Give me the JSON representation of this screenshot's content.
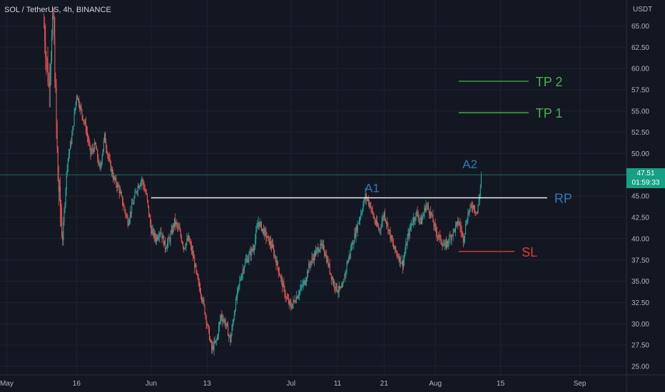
{
  "header": {
    "title": "SOL / TetherUS, 4h, BINANCE",
    "unit": "USDT"
  },
  "last_price": {
    "value": "47.51",
    "countdown": "01:59:33"
  },
  "colors": {
    "background": "#131722",
    "grid": "#1e2230",
    "text": "#b2b5be",
    "up": "#26a69a",
    "down": "#ef5350",
    "price_line": "#1e6b5e",
    "tp": "#4caf50",
    "rp_label": "#2f7bb8",
    "sl": "#e53935",
    "rp_line": "#ffffff"
  },
  "chart_data": {
    "type": "candlestick",
    "y_axis": {
      "min": 25,
      "max": 67.5,
      "ticks": [
        "25.00",
        "27.50",
        "30.00",
        "32.50",
        "35.00",
        "37.50",
        "40.00",
        "42.50",
        "45.00",
        "47.50",
        "50.00",
        "52.50",
        "55.00",
        "57.50",
        "60.00",
        "62.50",
        "65.00"
      ]
    },
    "x_ticks": [
      {
        "label": "May",
        "day": 0
      },
      {
        "label": "16",
        "day": 15
      },
      {
        "label": "Jun",
        "day": 31
      },
      {
        "label": "13",
        "day": 43
      },
      {
        "label": "Jul",
        "day": 61
      },
      {
        "label": "11",
        "day": 71
      },
      {
        "label": "21",
        "day": 81
      },
      {
        "label": "Aug",
        "day": 92
      },
      {
        "label": "15",
        "day": 106
      },
      {
        "label": "Sep",
        "day": 123
      }
    ],
    "close_path": [
      [
        8,
        65
      ],
      [
        9,
        58
      ],
      [
        10,
        66
      ],
      [
        11,
        47
      ],
      [
        12,
        40
      ],
      [
        13,
        49
      ],
      [
        14,
        52
      ],
      [
        15,
        57
      ],
      [
        16,
        55
      ],
      [
        17,
        53
      ],
      [
        18,
        50
      ],
      [
        19,
        51
      ],
      [
        20,
        48
      ],
      [
        21,
        52
      ],
      [
        22,
        49
      ],
      [
        23,
        47
      ],
      [
        24,
        46
      ],
      [
        25,
        44
      ],
      [
        26,
        42
      ],
      [
        27,
        44
      ],
      [
        28,
        46
      ],
      [
        29,
        47
      ],
      [
        30,
        45
      ],
      [
        31,
        41
      ],
      [
        32,
        40
      ],
      [
        33,
        41
      ],
      [
        34,
        39
      ],
      [
        35,
        40
      ],
      [
        36,
        42
      ],
      [
        37,
        41
      ],
      [
        38,
        39
      ],
      [
        39,
        40
      ],
      [
        40,
        38
      ],
      [
        41,
        35
      ],
      [
        42,
        33
      ],
      [
        43,
        30
      ],
      [
        44,
        27
      ],
      [
        45,
        28
      ],
      [
        46,
        31
      ],
      [
        47,
        30
      ],
      [
        48,
        28
      ],
      [
        49,
        32
      ],
      [
        50,
        35
      ],
      [
        51,
        37
      ],
      [
        52,
        38
      ],
      [
        53,
        39
      ],
      [
        54,
        42
      ],
      [
        55,
        41
      ],
      [
        56,
        40
      ],
      [
        57,
        39
      ],
      [
        58,
        37
      ],
      [
        59,
        35
      ],
      [
        60,
        33
      ],
      [
        61,
        32
      ],
      [
        62,
        33
      ],
      [
        63,
        34
      ],
      [
        64,
        35
      ],
      [
        65,
        37
      ],
      [
        66,
        38
      ],
      [
        67,
        39
      ],
      [
        68,
        39
      ],
      [
        69,
        37
      ],
      [
        70,
        35
      ],
      [
        71,
        34
      ],
      [
        72,
        34
      ],
      [
        73,
        37
      ],
      [
        74,
        39
      ],
      [
        75,
        41
      ],
      [
        76,
        43
      ],
      [
        77,
        45
      ],
      [
        78,
        44
      ],
      [
        79,
        42
      ],
      [
        80,
        41
      ],
      [
        81,
        43
      ],
      [
        82,
        41
      ],
      [
        83,
        39
      ],
      [
        84,
        38
      ],
      [
        85,
        37
      ],
      [
        86,
        40
      ],
      [
        87,
        42
      ],
      [
        88,
        43
      ],
      [
        89,
        42
      ],
      [
        90,
        44
      ],
      [
        91,
        43
      ],
      [
        92,
        41
      ],
      [
        93,
        40
      ],
      [
        94,
        39
      ],
      [
        95,
        40
      ],
      [
        96,
        41
      ],
      [
        97,
        42
      ],
      [
        98,
        40
      ],
      [
        99,
        43
      ],
      [
        100,
        44
      ],
      [
        101,
        43
      ],
      [
        102,
        47.51
      ]
    ],
    "annotations": [
      {
        "label": "TP 2",
        "y": 58.5,
        "x_from": 97,
        "x_to": 112
      },
      {
        "label": "TP 1",
        "y": 54.8,
        "x_from": 97,
        "x_to": 112
      },
      {
        "label": "RP",
        "y": 44.8,
        "x_from": 31,
        "x_to": 116
      },
      {
        "label": "SL",
        "y": 38.5,
        "x_from": 97,
        "x_to": 109
      }
    ],
    "points": [
      {
        "label": "A1",
        "day": 80,
        "y": 46.0
      },
      {
        "label": "A2",
        "day": 101,
        "y": 48.8
      }
    ]
  }
}
